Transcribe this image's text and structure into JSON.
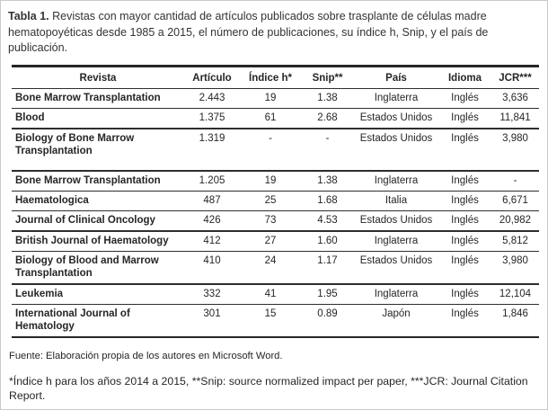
{
  "page": {
    "title_label": "Tabla 1.",
    "title_text": " Revistas con mayor cantidad de artículos publicados sobre trasplante de células madre hematopoyéticas desde 1985 a 2015, el número de publicaciones, su índice h, Snip, y el país de publicación."
  },
  "table": {
    "columns": [
      "Revista",
      "Artículo",
      "Índice h*",
      "Snip**",
      "País",
      "Idioma",
      "JCR***"
    ],
    "rows": [
      {
        "revista": "Bone Marrow Transplantation",
        "articulo": "2.443",
        "indice_h": "19",
        "snip": "1.38",
        "pais": "Inglaterra",
        "idioma": "Inglés",
        "jcr": "3,636"
      },
      {
        "revista": "Blood",
        "articulo": "1.375",
        "indice_h": "61",
        "snip": "2.68",
        "pais": "Estados Unidos",
        "idioma": "Inglés",
        "jcr": "11,841"
      },
      {
        "revista": "Biology of Bone Marrow Transplantation",
        "articulo": "1.319",
        "indice_h": "-",
        "snip": "-",
        "pais": "Estados Unidos",
        "idioma": "Inglés",
        "jcr": "3,980"
      },
      {
        "revista": "Bone Marrow Transplantation",
        "articulo": "1.205",
        "indice_h": "19",
        "snip": "1.38",
        "pais": "Inglaterra",
        "idioma": "Inglés",
        "jcr": "-"
      },
      {
        "revista": "Haematologica",
        "articulo": "487",
        "indice_h": "25",
        "snip": "1.68",
        "pais": "Italia",
        "idioma": "Inglés",
        "jcr": "6,671"
      },
      {
        "revista": "Journal of Clinical Oncology",
        "articulo": "426",
        "indice_h": "73",
        "snip": "4.53",
        "pais": "Estados Unidos",
        "idioma": "Inglés",
        "jcr": "20,982"
      },
      {
        "revista": "British Journal of Haematology",
        "articulo": "412",
        "indice_h": "27",
        "snip": "1.60",
        "pais": "Inglaterra",
        "idioma": "Inglés",
        "jcr": "5,812"
      },
      {
        "revista": "Biology of Blood and Marrow Transplantation",
        "articulo": "410",
        "indice_h": "24",
        "snip": "1.17",
        "pais": "Estados Unidos",
        "idioma": "Inglés",
        "jcr": "3,980"
      },
      {
        "revista": "Leukemia",
        "articulo": "332",
        "indice_h": "41",
        "snip": "1.95",
        "pais": "Inglaterra",
        "idioma": "Inglés",
        "jcr": "12,104"
      },
      {
        "revista": "International Journal of Hematology",
        "articulo": "301",
        "indice_h": "15",
        "snip": "0.89",
        "pais": "Japón",
        "idioma": "Inglés",
        "jcr": "1,846"
      }
    ]
  },
  "footer": {
    "fuente": "Fuente: Elaboración propia de los autores en Microsoft Word.",
    "notes": "*Índice h para los años 2014 a 2015, **Snip: source normalized impact per paper, ***JCR: Journal Citation Report."
  },
  "colors": {
    "text": "#262626",
    "table_border": "#262626",
    "page_border": "#c9c9c9",
    "background": "#ffffff"
  }
}
